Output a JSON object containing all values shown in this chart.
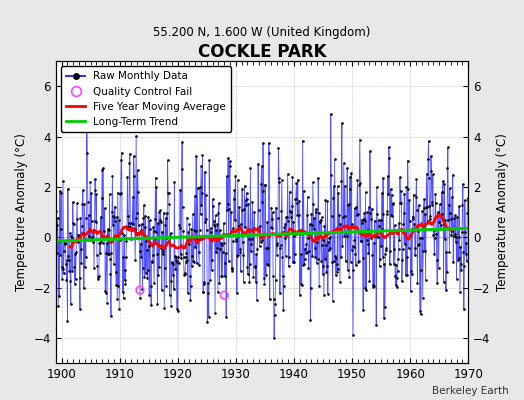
{
  "title": "COCKLE PARK",
  "subtitle": "55.200 N, 1.600 W (United Kingdom)",
  "ylabel": "Temperature Anomaly (°C)",
  "credit": "Berkeley Earth",
  "year_start": 1899,
  "year_end": 1970,
  "ylim": [
    -5.0,
    7.0
  ],
  "yticks": [
    -4,
    -2,
    0,
    2,
    4,
    6
  ],
  "xticks": [
    1900,
    1910,
    1920,
    1930,
    1940,
    1950,
    1960,
    1970
  ],
  "raw_color": "#3333ff",
  "dot_color": "#000000",
  "qc_color": "#ff44ff",
  "moving_avg_color": "#ff0000",
  "trend_color": "#00cc00",
  "bg_color": "#e8e8e8",
  "plot_bg": "#ffffff",
  "legend_labels": [
    "Raw Monthly Data",
    "Quality Control Fail",
    "Five Year Moving Average",
    "Long-Term Trend"
  ]
}
